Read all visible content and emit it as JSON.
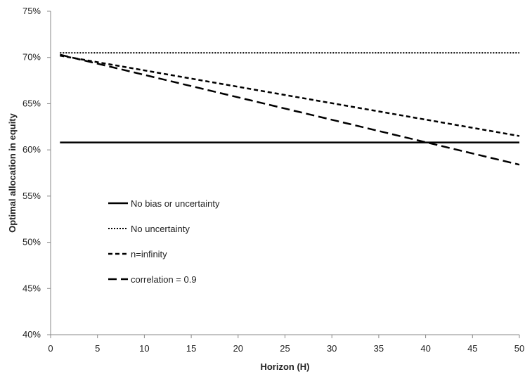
{
  "chart_data": {
    "type": "line",
    "title": "",
    "xlabel": "Horizon (H)",
    "ylabel": "Optimal allocation in equity",
    "xlim": [
      0,
      50
    ],
    "ylim": [
      0.4,
      0.75
    ],
    "x_ticks": [
      0,
      5,
      10,
      15,
      20,
      25,
      30,
      35,
      40,
      45,
      50
    ],
    "y_ticks": [
      0.4,
      0.45,
      0.5,
      0.55,
      0.6,
      0.65,
      0.7,
      0.75
    ],
    "x_tick_labels": [
      "0",
      "5",
      "10",
      "15",
      "20",
      "25",
      "30",
      "35",
      "40",
      "45",
      "50"
    ],
    "y_tick_labels": [
      "40%",
      "45%",
      "50%",
      "55%",
      "60%",
      "65%",
      "70%",
      "75%"
    ],
    "grid": false,
    "legend_position": "left-center",
    "series": [
      {
        "name": "No bias or uncertainty",
        "style": "solid",
        "color": "#000000",
        "x": [
          1,
          50
        ],
        "y": [
          0.608,
          0.608
        ]
      },
      {
        "name": "No uncertainty",
        "style": "dotted",
        "color": "#000000",
        "x": [
          1,
          50
        ],
        "y": [
          0.705,
          0.705
        ]
      },
      {
        "name": "n=infinity",
        "style": "short-dash",
        "color": "#000000",
        "x": [
          1,
          50
        ],
        "y": [
          0.702,
          0.615
        ]
      },
      {
        "name": "correlation = 0.9",
        "style": "long-dash",
        "color": "#000000",
        "x": [
          1,
          50
        ],
        "y": [
          0.703,
          0.584
        ]
      }
    ]
  }
}
